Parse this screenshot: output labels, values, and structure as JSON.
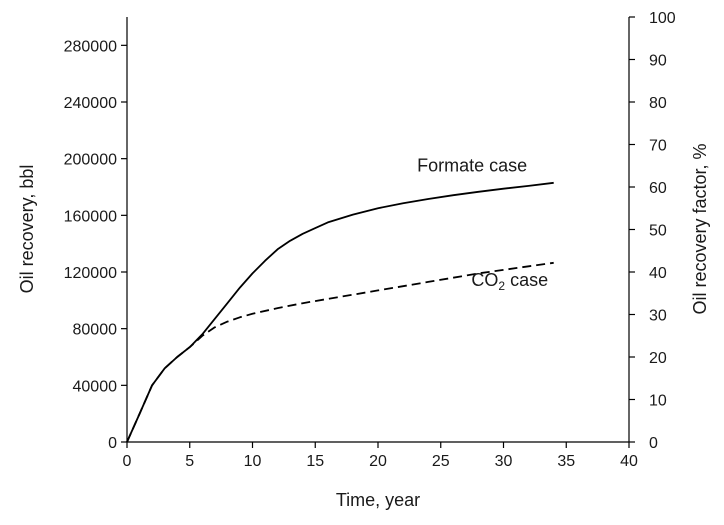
{
  "chart_data": {
    "type": "line",
    "xlabel": "Time, year",
    "ylabel": "Oil recovery, bbl",
    "y2label": "Oil recovery factor, %",
    "xlim": [
      0,
      40
    ],
    "ylim": [
      0,
      300000
    ],
    "y2lim": [
      0,
      100
    ],
    "xticks": [
      "0",
      "5",
      "10",
      "15",
      "20",
      "25",
      "30",
      "35",
      "40"
    ],
    "yticks": [
      "0",
      "40000",
      "80000",
      "120000",
      "160000",
      "200000",
      "240000",
      "280000"
    ],
    "y2ticks": [
      "0",
      "10",
      "20",
      "30",
      "40",
      "50",
      "60",
      "70",
      "80",
      "90",
      "100"
    ],
    "grid": false,
    "series": [
      {
        "name": "Formate case",
        "line_style": "solid",
        "x": [
          0,
          1,
          2,
          3,
          4,
          5,
          6,
          7,
          8,
          9,
          10,
          11,
          12,
          13,
          14,
          15,
          16,
          18,
          20,
          22,
          24,
          26,
          28,
          30,
          32,
          34
        ],
        "y": [
          0,
          20000,
          40000,
          52000,
          60000,
          67000,
          76000,
          87000,
          98000,
          109000,
          119000,
          128000,
          136000,
          142000,
          147000,
          151000,
          155000,
          160500,
          165000,
          168500,
          171500,
          174200,
          176600,
          178800,
          180800,
          183000
        ]
      },
      {
        "name": "CO2 case",
        "line_style": "dashed",
        "x": [
          0,
          1,
          2,
          3,
          4,
          5,
          6,
          7,
          8,
          9,
          10,
          12,
          14,
          16,
          18,
          20,
          22,
          24,
          26,
          28,
          30,
          32,
          34
        ],
        "y": [
          0,
          20000,
          40000,
          52000,
          60000,
          67000,
          75000,
          81000,
          85000,
          88000,
          90500,
          94500,
          98000,
          101000,
          104000,
          107000,
          110000,
          113000,
          116000,
          119000,
          121500,
          124000,
          126500
        ]
      }
    ],
    "annotations": [
      {
        "text": "Formate case",
        "x": 27.5,
        "y": 191000
      },
      {
        "text": "CO",
        "sub": "2",
        "suffix": " case",
        "x": 30.5,
        "y": 110000
      }
    ]
  }
}
